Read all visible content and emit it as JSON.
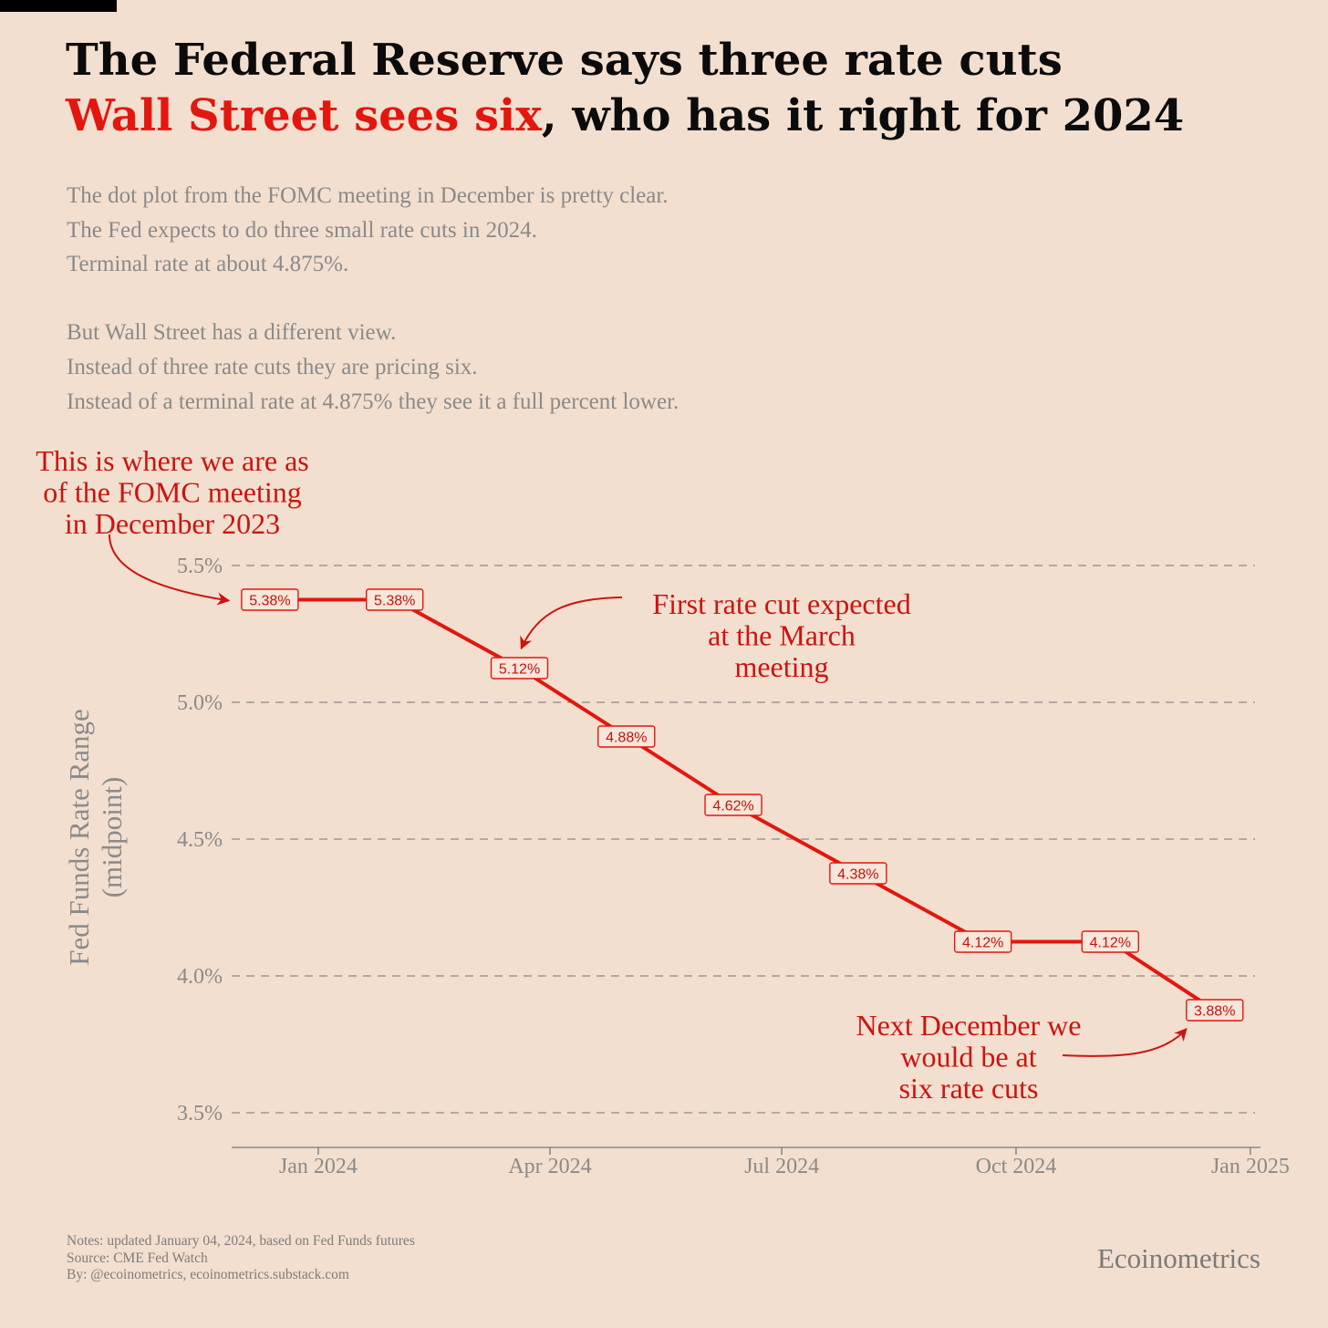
{
  "title": {
    "line1": "The Federal Reserve says three rate cuts",
    "line2_highlight": "Wall Street sees six",
    "line2_rest": ", who has it right for 2024"
  },
  "subtitle": {
    "para1": [
      "The dot plot from the FOMC meeting in December is pretty clear.",
      "The Fed expects to do three small rate cuts in 2024.",
      "Terminal rate at about 4.875%."
    ],
    "para2": [
      "But Wall Street has a different view.",
      "Instead of three rate cuts they are pricing six.",
      "Instead of a terminal rate at 4.875% they see it a full percent lower."
    ]
  },
  "chart_data": {
    "type": "line",
    "ylabel": "Fed Funds Rate Range (midpoint)",
    "ylabel_lines": [
      "Fed Funds Rate Range",
      "(midpoint)"
    ],
    "ylim": [
      3.4,
      5.65
    ],
    "xlim": [
      "2023-11-28",
      "2025-01-05"
    ],
    "y_ticks": [
      3.5,
      4.0,
      4.5,
      5.0,
      5.5
    ],
    "y_tick_labels": [
      "3.5%",
      "4.0%",
      "4.5%",
      "5.0%",
      "5.5%"
    ],
    "x_ticks": [
      "2024-01-01",
      "2024-04-01",
      "2024-07-01",
      "2024-10-01",
      "2025-01-01"
    ],
    "x_tick_labels": [
      "Jan 2024",
      "Apr 2024",
      "Jul 2024",
      "Oct 2024",
      "Jan 2025"
    ],
    "grid": "horizontal dashed",
    "series": [
      {
        "x": [
          "2023-12-13",
          "2024-01-31",
          "2024-03-20",
          "2024-05-01",
          "2024-06-12",
          "2024-07-31",
          "2024-09-18",
          "2024-11-07",
          "2024-12-18"
        ],
        "values": [
          5.375,
          5.375,
          5.125,
          4.875,
          4.625,
          4.375,
          4.125,
          4.125,
          3.875
        ],
        "labels": [
          "5.38%",
          "5.38%",
          "5.12%",
          "4.88%",
          "4.62%",
          "4.38%",
          "4.12%",
          "4.12%",
          "3.88%"
        ]
      }
    ],
    "annotations": [
      {
        "lines": [
          "This is where we are as",
          "of the FOMC meeting",
          "in December 2023"
        ],
        "target_index": 0
      },
      {
        "lines": [
          "First rate cut expected",
          "at the March",
          "meeting"
        ],
        "target_index": 2
      },
      {
        "lines": [
          "Next December we",
          "would be at",
          "six rate cuts"
        ],
        "target_index": 8
      }
    ]
  },
  "notes": [
    "Notes: updated January 04, 2024, based on Fed Funds futures",
    "Source: CME Fed Watch",
    "By: @ecoinometrics, ecoinometrics.substack.com"
  ],
  "brand": "Ecoinometrics",
  "colors": {
    "background": "#f2dfcf",
    "accent": "#e3170f",
    "annotation": "#cc1410",
    "grid": "#8a8a8a",
    "text_muted": "#8a8a8a"
  }
}
